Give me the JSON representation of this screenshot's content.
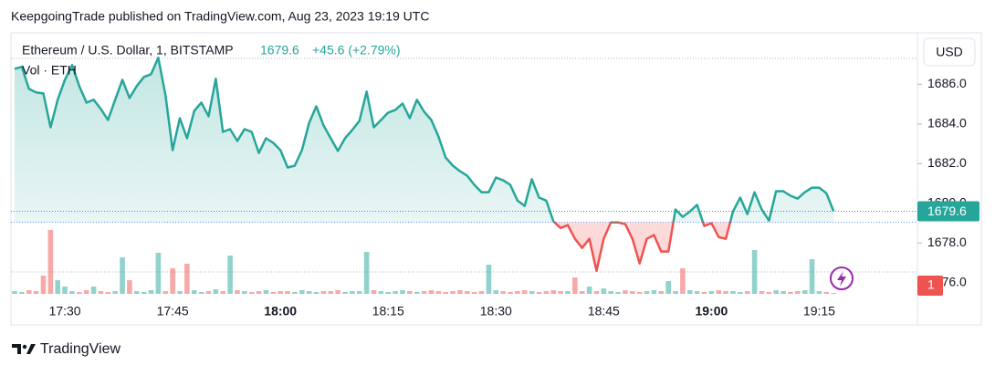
{
  "header": {
    "text": "KeepgoingTrade published on TradingView.com, Aug 23, 2023 19:19 UTC"
  },
  "footer": {
    "brand": "TradingView"
  },
  "chart_data": {
    "type": "baseline",
    "symbol": "Ethereum / U.S. Dollar, 1, BITSTAMP",
    "last_price": 1679.6,
    "change": "+45.6 (+2.79%)",
    "volume_label": "Vol · ETH",
    "currency": "USD",
    "baseline": 1679.05,
    "up_color": "#26a69a",
    "down_color": "#ef5350",
    "categories": [
      null,
      null,
      null,
      null,
      null,
      null,
      null,
      "17:30",
      null,
      null,
      null,
      null,
      null,
      null,
      null,
      null,
      null,
      null,
      null,
      null,
      null,
      null,
      "17:45",
      null,
      null,
      null,
      null,
      null,
      null,
      null,
      null,
      null,
      null,
      null,
      null,
      null,
      null,
      "18:00",
      null,
      null,
      null,
      null,
      null,
      null,
      null,
      null,
      null,
      null,
      null,
      null,
      null,
      null,
      "18:15",
      null,
      null,
      null,
      null,
      null,
      null,
      null,
      null,
      null,
      null,
      null,
      null,
      null,
      null,
      "18:30",
      null,
      null,
      null,
      null,
      null,
      null,
      null,
      null,
      null,
      null,
      null,
      null,
      null,
      null,
      "18:45",
      null,
      null,
      null,
      null,
      null,
      null,
      null,
      null,
      null,
      null,
      null,
      null,
      null,
      null,
      "19:00",
      null,
      null,
      null,
      null,
      null,
      null,
      null,
      null,
      null,
      null,
      null,
      null,
      null,
      null,
      "19:15",
      null,
      null
    ],
    "values": [
      1686.78,
      1686.88,
      1685.77,
      1685.59,
      1685.54,
      1683.83,
      1685.22,
      1686.23,
      1686.97,
      1685.91,
      1685.08,
      1685.22,
      1684.76,
      1684.2,
      1685.22,
      1686.23,
      1685.31,
      1685.91,
      1686.37,
      1686.51,
      1687.34,
      1685.45,
      1682.68,
      1684.29,
      1683.28,
      1684.66,
      1685.08,
      1684.39,
      1686.28,
      1683.6,
      1683.74,
      1683.14,
      1683.74,
      1683.6,
      1682.54,
      1683.28,
      1683.05,
      1682.68,
      1681.81,
      1681.9,
      1682.68,
      1684.06,
      1684.89,
      1683.93,
      1683.28,
      1682.64,
      1683.28,
      1683.7,
      1684.16,
      1685.63,
      1683.83,
      1684.2,
      1684.57,
      1684.71,
      1685.03,
      1684.29,
      1685.22,
      1684.62,
      1684.2,
      1683.37,
      1682.31,
      1681.9,
      1681.62,
      1681.39,
      1680.93,
      1680.56,
      1680.56,
      1681.3,
      1681.16,
      1680.93,
      1680.14,
      1679.87,
      1681.21,
      1680.29,
      1680.14,
      1679.09,
      1678.76,
      1678.9,
      1678.21,
      1677.75,
      1678.21,
      1676.6,
      1678.21,
      1679.04,
      1679.04,
      1678.95,
      1678.21,
      1676.97,
      1678.21,
      1678.4,
      1677.57,
      1677.57,
      1679.69,
      1679.32,
      1679.59,
      1679.92,
      1678.86,
      1679.0,
      1678.3,
      1678.21,
      1679.59,
      1680.29,
      1679.46,
      1680.56,
      1679.69,
      1679.13,
      1680.61,
      1680.61,
      1680.38,
      1680.24,
      1680.56,
      1680.79,
      1680.79,
      1680.51,
      1679.6
    ],
    "volume": [
      3,
      2,
      4,
      3,
      20,
      70,
      15,
      8,
      3,
      2,
      4,
      8,
      3,
      2,
      3,
      40,
      15,
      3,
      2,
      4,
      45,
      3,
      28,
      3,
      33,
      4,
      2,
      3,
      5,
      3,
      42,
      4,
      3,
      2,
      3,
      4,
      2,
      3,
      3,
      2,
      4,
      3,
      2,
      3,
      3,
      4,
      2,
      3,
      3,
      46,
      4,
      3,
      2,
      3,
      4,
      3,
      2,
      3,
      4,
      3,
      2,
      3,
      4,
      3,
      2,
      3,
      32,
      4,
      3,
      2,
      3,
      4,
      3,
      2,
      3,
      4,
      3,
      3,
      18,
      3,
      8,
      3,
      6,
      3,
      2,
      4,
      3,
      2,
      3,
      4,
      3,
      14,
      3,
      28,
      4,
      3,
      2,
      3,
      4,
      3,
      3,
      2,
      3,
      48,
      3,
      2,
      4,
      3,
      2,
      3,
      4,
      38,
      3,
      2,
      1
    ],
    "ylim": [
      1675.3,
      1688.5
    ],
    "yticks": [
      {
        "value": 1676,
        "label": "1676.0"
      },
      {
        "value": 1678,
        "label": "1678.0"
      },
      {
        "value": 1680,
        "label": "1680.0"
      },
      {
        "value": 1682,
        "label": "1682.0"
      },
      {
        "value": 1684,
        "label": "1684.0"
      },
      {
        "value": 1686,
        "label": "1686.0"
      }
    ]
  }
}
